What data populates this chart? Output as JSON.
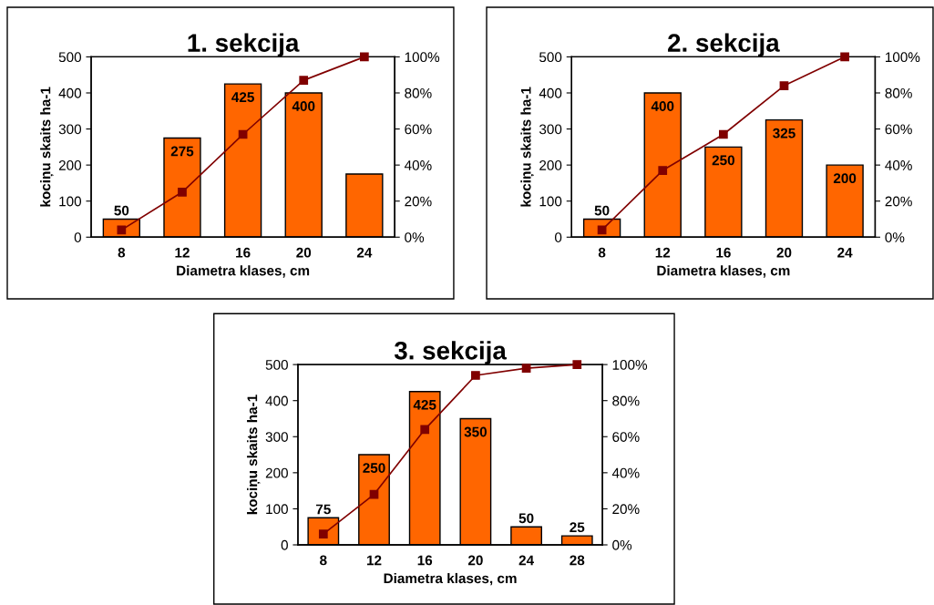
{
  "chart_data": [
    {
      "type": "bar",
      "title": "1. sekcija",
      "xlabel": "Diametra klases, cm",
      "ylabel": "kociņu skaits ha-1",
      "categories": [
        "8",
        "12",
        "16",
        "20",
        "24"
      ],
      "series": [
        {
          "color": "#ff6600",
          "values": [
            50,
            275,
            425,
            400,
            175
          ],
          "value_labels": [
            "50",
            "275",
            "425",
            "400",
            null
          ]
        },
        {
          "type": "line",
          "axis": "y2",
          "color": "#800000",
          "values": [
            4,
            25,
            57,
            87,
            100
          ]
        }
      ],
      "ylim": [
        0,
        500
      ],
      "yticks": [
        0,
        100,
        200,
        300,
        400,
        500
      ],
      "y2lim": [
        0,
        100
      ],
      "y2ticks": [
        {
          "value": 0,
          "label": "0%"
        },
        {
          "value": 20,
          "label": "20%"
        },
        {
          "value": 40,
          "label": "40%"
        },
        {
          "value": 60,
          "label": "60%"
        },
        {
          "value": 80,
          "label": "80%"
        },
        {
          "value": 100,
          "label": "100%"
        }
      ],
      "grid": false,
      "legend": false,
      "marker": "square",
      "line_style": "solid"
    },
    {
      "type": "bar",
      "title": "2. sekcija",
      "xlabel": "Diametra klases, cm",
      "ylabel": "kociņu skaits ha-1",
      "categories": [
        "8",
        "12",
        "16",
        "20",
        "24"
      ],
      "series": [
        {
          "color": "#ff6600",
          "values": [
            50,
            400,
            250,
            325,
            200
          ],
          "value_labels": [
            "50",
            "400",
            "250",
            "325",
            "200"
          ]
        },
        {
          "type": "line",
          "axis": "y2",
          "color": "#800000",
          "values": [
            4,
            37,
            57,
            84,
            100
          ]
        }
      ],
      "ylim": [
        0,
        500
      ],
      "yticks": [
        0,
        100,
        200,
        300,
        400,
        500
      ],
      "y2lim": [
        0,
        100
      ],
      "y2ticks": [
        {
          "value": 0,
          "label": "0%"
        },
        {
          "value": 20,
          "label": "20%"
        },
        {
          "value": 40,
          "label": "40%"
        },
        {
          "value": 60,
          "label": "60%"
        },
        {
          "value": 80,
          "label": "80%"
        },
        {
          "value": 100,
          "label": "100%"
        }
      ],
      "grid": false,
      "legend": false,
      "marker": "square",
      "line_style": "solid"
    },
    {
      "type": "bar",
      "title": "3. sekcija",
      "xlabel": "Diametra klases, cm",
      "ylabel": "kociņu skaits ha-1",
      "categories": [
        "8",
        "12",
        "16",
        "20",
        "24",
        "28"
      ],
      "series": [
        {
          "color": "#ff6600",
          "values": [
            75,
            250,
            425,
            350,
            50,
            25
          ],
          "value_labels": [
            "75",
            "250",
            "425",
            "350",
            "50",
            "25"
          ]
        },
        {
          "type": "line",
          "axis": "y2",
          "color": "#800000",
          "values": [
            6,
            28,
            64,
            94,
            98,
            100
          ]
        }
      ],
      "ylim": [
        0,
        500
      ],
      "yticks": [
        0,
        100,
        200,
        300,
        400,
        500
      ],
      "y2lim": [
        0,
        100
      ],
      "y2ticks": [
        {
          "value": 0,
          "label": "0%"
        },
        {
          "value": 20,
          "label": "20%"
        },
        {
          "value": 40,
          "label": "40%"
        },
        {
          "value": 60,
          "label": "60%"
        },
        {
          "value": 80,
          "label": "80%"
        },
        {
          "value": 100,
          "label": "100%"
        }
      ],
      "grid": false,
      "legend": false,
      "marker": "square",
      "line_style": "solid"
    }
  ]
}
